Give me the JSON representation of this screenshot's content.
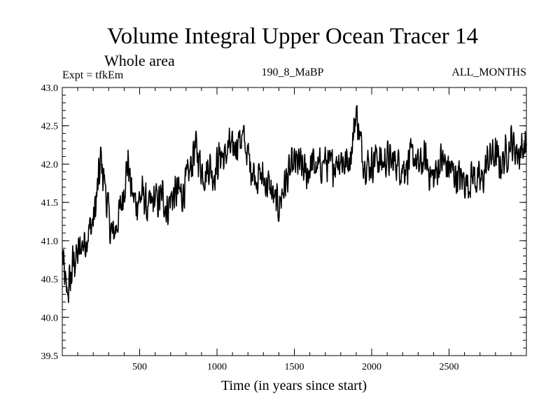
{
  "chart_data": {
    "type": "line",
    "title": "Volume Integral Upper Ocean Tracer 14",
    "subtitle": "Whole area",
    "expt_label": "Expt = tfkEm",
    "run_label": "190_8_MaBP",
    "period_label": "ALL_MONTHS",
    "xlabel": "Time (in years since start)",
    "ylabel": "",
    "xlim": [
      0,
      3000
    ],
    "ylim": [
      39.5,
      43.0
    ],
    "xticks": [
      500,
      1000,
      1500,
      2000,
      2500
    ],
    "xtick_labels": [
      "500",
      "1000",
      "1500",
      "2000",
      "2500"
    ],
    "yticks": [
      39.5,
      40.0,
      40.5,
      41.0,
      41.5,
      42.0,
      42.5,
      43.0
    ],
    "ytick_labels": [
      "39.5",
      "40.0",
      "40.5",
      "41.0",
      "41.5",
      "42.0",
      "42.5",
      "43.0"
    ],
    "grid": false,
    "series": [
      {
        "color": "#000000",
        "x": [
          0,
          25,
          50,
          75,
          100,
          125,
          150,
          175,
          200,
          225,
          250,
          275,
          300,
          325,
          350,
          375,
          400,
          425,
          450,
          475,
          500,
          525,
          550,
          575,
          600,
          625,
          650,
          675,
          700,
          725,
          750,
          775,
          800,
          825,
          850,
          875,
          900,
          925,
          950,
          975,
          1000,
          1025,
          1050,
          1075,
          1100,
          1125,
          1150,
          1175,
          1200,
          1225,
          1250,
          1275,
          1300,
          1325,
          1350,
          1375,
          1400,
          1425,
          1450,
          1475,
          1500,
          1525,
          1550,
          1575,
          1600,
          1625,
          1650,
          1675,
          1700,
          1725,
          1750,
          1775,
          1800,
          1825,
          1850,
          1875,
          1900,
          1925,
          1950,
          1975,
          2000,
          2025,
          2050,
          2075,
          2100,
          2125,
          2150,
          2175,
          2200,
          2225,
          2250,
          2275,
          2300,
          2325,
          2350,
          2375,
          2400,
          2425,
          2450,
          2475,
          2500,
          2525,
          2550,
          2575,
          2600,
          2625,
          2650,
          2675,
          2700,
          2725,
          2750,
          2775,
          2800,
          2825,
          2850,
          2875,
          2900,
          2925,
          2950,
          2975,
          3000
        ],
        "values": [
          40.8,
          40.3,
          40.45,
          40.75,
          40.8,
          40.95,
          41.0,
          41.15,
          41.25,
          41.6,
          42.05,
          41.75,
          41.3,
          41.05,
          41.2,
          41.4,
          41.7,
          42.05,
          41.6,
          41.5,
          41.55,
          41.6,
          41.4,
          41.45,
          41.55,
          41.5,
          41.6,
          41.4,
          41.55,
          41.6,
          41.65,
          41.6,
          41.75,
          41.9,
          42.2,
          42.15,
          41.95,
          41.85,
          42.0,
          41.85,
          42.0,
          42.15,
          42.05,
          42.25,
          42.15,
          42.3,
          42.35,
          42.3,
          42.1,
          41.95,
          41.85,
          41.85,
          41.8,
          41.75,
          41.65,
          41.5,
          41.45,
          41.65,
          41.8,
          41.9,
          42.0,
          42.0,
          41.95,
          41.85,
          41.95,
          42.0,
          41.9,
          42.0,
          42.05,
          41.95,
          42.0,
          42.05,
          42.1,
          42.0,
          42.05,
          42.25,
          42.7,
          42.3,
          42.05,
          42.0,
          42.0,
          42.1,
          42.05,
          42.0,
          42.1,
          42.0,
          42.05,
          42.0,
          41.95,
          42.0,
          42.05,
          42.1,
          41.95,
          42.0,
          42.05,
          41.9,
          41.8,
          41.95,
          42.05,
          42.0,
          41.95,
          41.9,
          41.85,
          41.8,
          41.8,
          41.75,
          41.85,
          41.8,
          41.75,
          41.85,
          42.05,
          42.1,
          42.1,
          42.0,
          42.05,
          42.15,
          42.3,
          42.2,
          42.15,
          42.2,
          42.25
        ],
        "noise_amp": [
          0.35,
          0.35,
          0.35,
          0.35,
          0.3,
          0.3,
          0.3,
          0.3,
          0.3,
          0.35,
          0.4,
          0.35,
          0.35,
          0.3,
          0.3,
          0.3,
          0.3,
          0.3,
          0.3,
          0.3,
          0.3,
          0.3,
          0.3,
          0.3,
          0.3,
          0.3,
          0.3,
          0.3,
          0.3,
          0.3,
          0.3,
          0.3,
          0.3,
          0.3,
          0.4,
          0.3,
          0.3,
          0.3,
          0.3,
          0.3,
          0.3,
          0.3,
          0.3,
          0.3,
          0.3,
          0.3,
          0.35,
          0.3,
          0.3,
          0.3,
          0.3,
          0.3,
          0.3,
          0.3,
          0.3,
          0.3,
          0.3,
          0.3,
          0.3,
          0.3,
          0.3,
          0.3,
          0.3,
          0.3,
          0.3,
          0.3,
          0.3,
          0.3,
          0.3,
          0.3,
          0.3,
          0.3,
          0.3,
          0.3,
          0.3,
          0.3,
          0.25,
          0.3,
          0.3,
          0.3,
          0.3,
          0.3,
          0.3,
          0.3,
          0.3,
          0.3,
          0.3,
          0.3,
          0.3,
          0.3,
          0.3,
          0.3,
          0.3,
          0.3,
          0.3,
          0.3,
          0.3,
          0.3,
          0.3,
          0.3,
          0.3,
          0.3,
          0.3,
          0.3,
          0.3,
          0.3,
          0.3,
          0.3,
          0.3,
          0.3,
          0.3,
          0.3,
          0.3,
          0.3,
          0.3,
          0.3,
          0.3,
          0.3,
          0.3,
          0.3,
          0.3
        ],
        "samples": 1200
      }
    ]
  }
}
